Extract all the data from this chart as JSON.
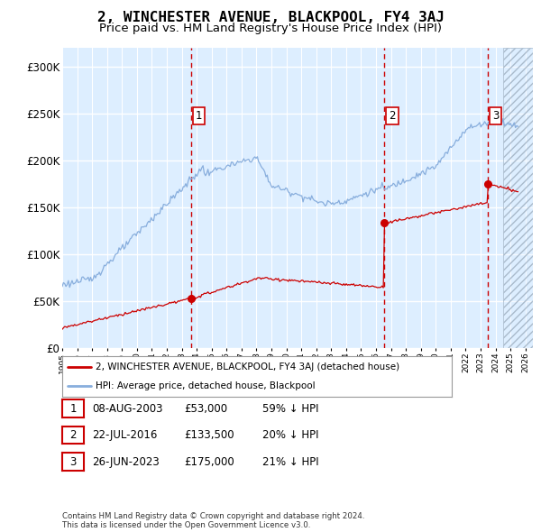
{
  "title": "2, WINCHESTER AVENUE, BLACKPOOL, FY4 3AJ",
  "subtitle": "Price paid vs. HM Land Registry's House Price Index (HPI)",
  "title_fontsize": 11.5,
  "subtitle_fontsize": 9.5,
  "bg_color": "#ddeeff",
  "grid_color": "#ffffff",
  "sale_color": "#cc0000",
  "hpi_color": "#88aedd",
  "dashed_line_color": "#cc0000",
  "ylim": [
    0,
    320000
  ],
  "yticks": [
    0,
    50000,
    100000,
    150000,
    200000,
    250000,
    300000
  ],
  "ytick_labels": [
    "£0",
    "£50K",
    "£100K",
    "£150K",
    "£200K",
    "£250K",
    "£300K"
  ],
  "sale1_date": 2003.6,
  "sale1_price": 53000,
  "sale2_date": 2016.56,
  "sale2_price": 133500,
  "sale3_date": 2023.48,
  "sale3_price": 175000,
  "xmin": 1995.0,
  "xmax": 2026.5,
  "future_start": 2024.5,
  "xticks": [
    1995,
    1996,
    1997,
    1998,
    1999,
    2000,
    2001,
    2002,
    2003,
    2004,
    2005,
    2006,
    2007,
    2008,
    2009,
    2010,
    2011,
    2012,
    2013,
    2014,
    2015,
    2016,
    2017,
    2018,
    2019,
    2020,
    2021,
    2022,
    2023,
    2024,
    2025,
    2026
  ],
  "legend_sale_label": "2, WINCHESTER AVENUE, BLACKPOOL, FY4 3AJ (detached house)",
  "legend_hpi_label": "HPI: Average price, detached house, Blackpool",
  "table_rows": [
    {
      "num": "1",
      "date": "08-AUG-2003",
      "price": "£53,000",
      "hpi": "59% ↓ HPI"
    },
    {
      "num": "2",
      "date": "22-JUL-2016",
      "price": "£133,500",
      "hpi": "20% ↓ HPI"
    },
    {
      "num": "3",
      "date": "26-JUN-2023",
      "price": "£175,000",
      "hpi": "21% ↓ HPI"
    }
  ],
  "footer": "Contains HM Land Registry data © Crown copyright and database right 2024.\nThis data is licensed under the Open Government Licence v3.0."
}
